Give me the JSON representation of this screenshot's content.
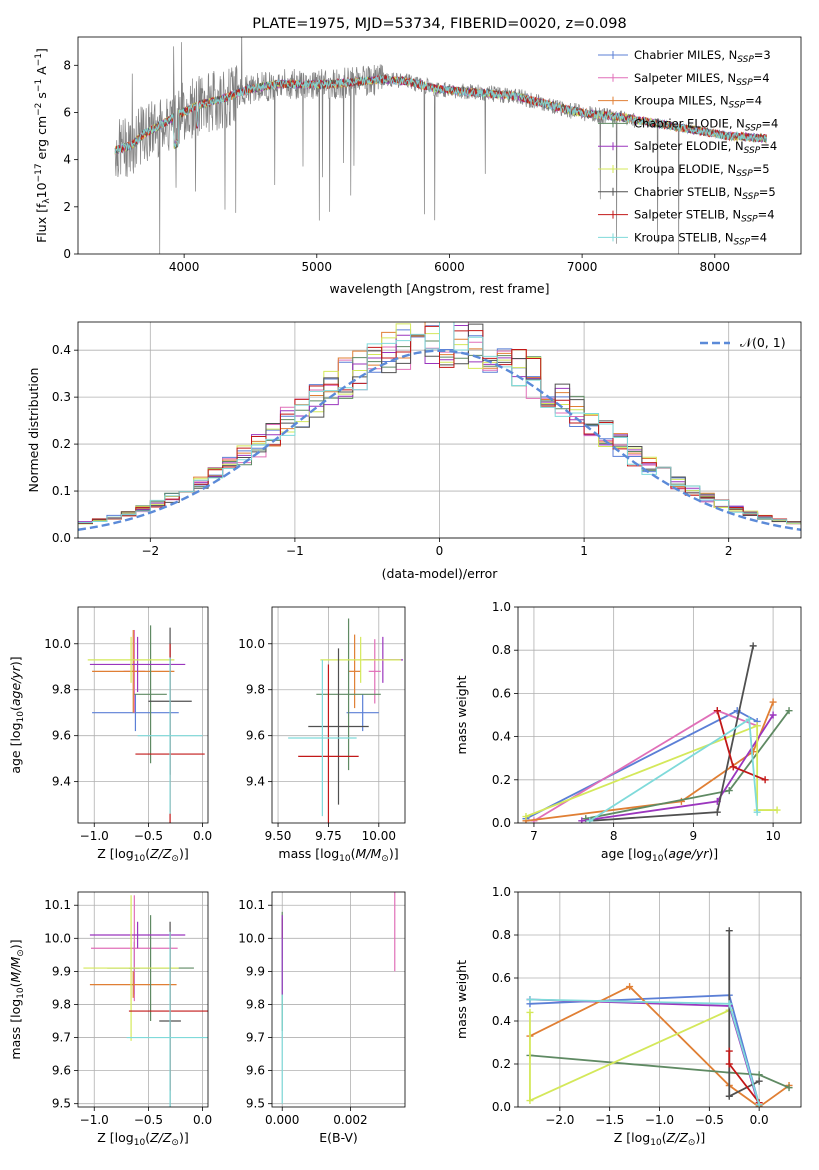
{
  "chart_data": [
    {
      "id": "spectrum",
      "type": "line",
      "title": "PLATE=1975, MJD=53734, FIBERID=0020, z=0.098",
      "xlabel": "wavelength [Angstrom, rest frame]",
      "ylabel": "Flux [f_λ 10^-17 erg cm^-2 s^-1 A^-1]",
      "xlim": [
        3200,
        8650
      ],
      "ylim": [
        0,
        9.2
      ],
      "xticks": [
        4000,
        5000,
        6000,
        7000,
        8000
      ],
      "yticks": [
        0,
        2,
        4,
        6,
        8
      ],
      "grid": false,
      "legend_position": "top-right",
      "data_color": "#808080",
      "data_x_range": [
        3480,
        8390
      ],
      "continuum_points": [
        [
          3480,
          4.4
        ],
        [
          3600,
          4.6
        ],
        [
          3700,
          5.1
        ],
        [
          3800,
          5.4
        ],
        [
          3950,
          5.9
        ],
        [
          4100,
          6.3
        ],
        [
          4300,
          6.6
        ],
        [
          4500,
          7.0
        ],
        [
          4700,
          7.2
        ],
        [
          4900,
          7.2
        ],
        [
          5100,
          7.2
        ],
        [
          5300,
          7.3
        ],
        [
          5500,
          7.4
        ],
        [
          5700,
          7.3
        ],
        [
          5900,
          7.0
        ],
        [
          6100,
          6.9
        ],
        [
          6300,
          6.8
        ],
        [
          6500,
          6.7
        ],
        [
          6700,
          6.4
        ],
        [
          6900,
          6.1
        ],
        [
          7100,
          5.9
        ],
        [
          7300,
          5.8
        ],
        [
          7500,
          5.6
        ],
        [
          7700,
          5.4
        ],
        [
          7900,
          5.2
        ],
        [
          8100,
          5.0
        ],
        [
          8390,
          4.9
        ]
      ],
      "series": [
        {
          "label_main": "Chabrier MILES, N",
          "label_sub": "SSP",
          "label_tail": "=3",
          "color": "#5b7fd6"
        },
        {
          "label_main": "Salpeter MILES, N",
          "label_sub": "SSP",
          "label_tail": "=4",
          "color": "#e06fb8"
        },
        {
          "label_main": "Kroupa MILES, N",
          "label_sub": "SSP",
          "label_tail": "=4",
          "color": "#e07f34"
        },
        {
          "label_main": "Chabrier ELODIE, N",
          "label_sub": "SSP",
          "label_tail": "=4",
          "color": "#5f8a63"
        },
        {
          "label_main": "Salpeter ELODIE, N",
          "label_sub": "SSP",
          "label_tail": "=4",
          "color": "#9b36be"
        },
        {
          "label_main": "Kroupa ELODIE, N",
          "label_sub": "SSP",
          "label_tail": "=5",
          "color": "#d4e85a"
        },
        {
          "label_main": "Chabrier STELIB, N",
          "label_sub": "SSP",
          "label_tail": "=5",
          "color": "#505050"
        },
        {
          "label_main": "Salpeter STELIB, N",
          "label_sub": "SSP",
          "label_tail": "=4",
          "color": "#c21818"
        },
        {
          "label_main": "Kroupa STELIB, N",
          "label_sub": "SSP",
          "label_tail": "=4",
          "color": "#7fdada"
        }
      ]
    },
    {
      "id": "residuals",
      "type": "line",
      "xlabel": "(data-model)/error",
      "ylabel": "Normed distribution",
      "xlim": [
        -2.5,
        2.5
      ],
      "ylim": [
        0,
        0.46
      ],
      "xticks": [
        -2,
        -1,
        0,
        1,
        2
      ],
      "yticks": [
        0.0,
        0.1,
        0.2,
        0.3,
        0.4
      ],
      "grid": true,
      "legend_position": "top-right",
      "gaussian": {
        "label": "𝒩(0, 1)",
        "mean": 0,
        "sigma": 1,
        "color": "#5b8ad8"
      },
      "bin_width": 0.1,
      "bin_start": -2.5,
      "base_hist": [
        0.022,
        0.028,
        0.035,
        0.045,
        0.055,
        0.068,
        0.08,
        0.09,
        0.1,
        0.115,
        0.13,
        0.15,
        0.17,
        0.19,
        0.21,
        0.23,
        0.25,
        0.27,
        0.31,
        0.3,
        0.3,
        0.28,
        0.29,
        0.3,
        0.32,
        0.33,
        0.34,
        0.35,
        0.36,
        0.37,
        0.38,
        0.38,
        0.385,
        0.37,
        0.36,
        0.375,
        0.37,
        0.38,
        0.35,
        0.34,
        0.33,
        0.31,
        0.28,
        0.26,
        0.25,
        0.24,
        0.22,
        0.21,
        0.19,
        0.17,
        0.16,
        0.15,
        0.14,
        0.12,
        0.11,
        0.09,
        0.08,
        0.075,
        0.07,
        0.065,
        0.06,
        0.055,
        0.05,
        0.048,
        0.045,
        0.04,
        0.035,
        0.032,
        0.03,
        0.028,
        0.026,
        0.025,
        0.024,
        0.023,
        0.022,
        0.021,
        0.02,
        0.02,
        0.019,
        0.018,
        0.018,
        0.017,
        0.016,
        0.016,
        0.015,
        0.015,
        0.014,
        0.014,
        0.013,
        0.013,
        0.012,
        0.012,
        0.012,
        0.011,
        0.011,
        0.011,
        0.01,
        0.01,
        0.01,
        0.01
      ],
      "hist_colors": [
        "#5b7fd6",
        "#e06fb8",
        "#e07f34",
        "#5f8a63",
        "#9b36be",
        "#d4e85a",
        "#505050",
        "#c21818",
        "#7fdada"
      ]
    },
    {
      "id": "z-age",
      "type": "scatter",
      "xlabel": "Z [log10(Z/Z⊙)]",
      "ylabel": "age [log10(age/yr)]",
      "xlim": [
        -1.15,
        0.05
      ],
      "ylim": [
        9.22,
        10.16
      ],
      "xticks": [
        -1.0,
        -0.5,
        0.0
      ],
      "yticks": [
        9.4,
        9.6,
        9.8,
        10.0
      ],
      "grid": true,
      "points": [
        {
          "x": -0.62,
          "y": 9.7,
          "xerr": 0.4,
          "yerr": 0.08,
          "color": "#5b7fd6"
        },
        {
          "x": -0.63,
          "y": 9.88,
          "xerr": 0.1,
          "yerr": 0.18,
          "color": "#e06fb8"
        },
        {
          "x": -0.64,
          "y": 9.88,
          "xerr": 0.38,
          "yerr": 0.18,
          "color": "#e07f34"
        },
        {
          "x": -0.48,
          "y": 9.78,
          "xerr": 0.15,
          "yerr": 0.3,
          "color": "#5f8a63"
        },
        {
          "x": -0.6,
          "y": 9.91,
          "xerr": 0.44,
          "yerr": 0.12,
          "color": "#9b36be"
        },
        {
          "x": -0.66,
          "y": 9.93,
          "xerr": 0.4,
          "yerr": 0.1,
          "color": "#d4e85a"
        },
        {
          "x": -0.3,
          "y": 9.75,
          "xerr": 0.2,
          "yerr": 0.32,
          "color": "#505050"
        },
        {
          "x": -0.3,
          "y": 9.52,
          "xerr": 0.32,
          "yerr": 0.48,
          "color": "#c21818"
        },
        {
          "x": -0.3,
          "y": 9.6,
          "xerr": 0.3,
          "yerr": 0.34,
          "color": "#7fdada"
        }
      ]
    },
    {
      "id": "mass-age",
      "type": "scatter",
      "xlabel": "mass [log10(M/M⊙)]",
      "xlim": [
        9.47,
        10.13
      ],
      "ylim": [
        9.22,
        10.16
      ],
      "xticks": [
        9.5,
        9.75,
        10.0
      ],
      "yticks": [
        9.4,
        9.6,
        9.8,
        10.0
      ],
      "grid": true,
      "points": [
        {
          "x": 9.92,
          "y": 9.7,
          "xerr": 0.08,
          "yerr": 0.08,
          "color": "#5b7fd6"
        },
        {
          "x": 9.98,
          "y": 9.88,
          "xerr": 0.03,
          "yerr": 0.14,
          "color": "#e06fb8"
        },
        {
          "x": 9.88,
          "y": 9.88,
          "xerr": 0.03,
          "yerr": 0.16,
          "color": "#e07f34"
        },
        {
          "x": 9.85,
          "y": 9.78,
          "xerr": 0.16,
          "yerr": 0.33,
          "color": "#5f8a63"
        },
        {
          "x": 10.02,
          "y": 9.93,
          "xerr": 0.1,
          "yerr": 0.1,
          "color": "#9b36be"
        },
        {
          "x": 9.91,
          "y": 9.93,
          "xerr": 0.2,
          "yerr": 0.1,
          "color": "#d4e85a"
        },
        {
          "x": 9.8,
          "y": 9.64,
          "xerr": 0.15,
          "yerr": 0.34,
          "color": "#505050"
        },
        {
          "x": 9.75,
          "y": 9.51,
          "xerr": 0.15,
          "yerr": 0.4,
          "color": "#c21818"
        },
        {
          "x": 9.72,
          "y": 9.59,
          "xerr": 0.17,
          "yerr": 0.34,
          "color": "#7fdada"
        }
      ]
    },
    {
      "id": "age-weight",
      "type": "line",
      "xlabel": "age [log10(age/yr)]",
      "ylabel": "mass weight",
      "xlim": [
        6.8,
        10.35
      ],
      "ylim": [
        0,
        1.0
      ],
      "xticks": [
        7,
        8,
        9,
        10
      ],
      "yticks": [
        0.0,
        0.2,
        0.4,
        0.6,
        0.8,
        1.0
      ],
      "grid": true,
      "series": [
        {
          "color": "#5b7fd6",
          "x": [
            6.9,
            9.55,
            9.8
          ],
          "y": [
            0.02,
            0.52,
            0.47
          ]
        },
        {
          "color": "#e06fb8",
          "x": [
            7.0,
            9.3,
            9.8
          ],
          "y": [
            0.01,
            0.52,
            0.45
          ]
        },
        {
          "color": "#e07f34",
          "x": [
            6.9,
            8.85,
            9.75,
            10.0
          ],
          "y": [
            0.01,
            0.1,
            0.33,
            0.56
          ]
        },
        {
          "color": "#5f8a63",
          "x": [
            7.65,
            9.45,
            10.2
          ],
          "y": [
            0.02,
            0.15,
            0.52
          ]
        },
        {
          "color": "#9b36be",
          "x": [
            7.6,
            9.3,
            10.0
          ],
          "y": [
            0.01,
            0.1,
            0.5
          ]
        },
        {
          "color": "#d4e85a",
          "x": [
            6.9,
            9.8,
            9.8,
            10.05
          ],
          "y": [
            0.03,
            0.45,
            0.06,
            0.06
          ]
        },
        {
          "color": "#505050",
          "x": [
            7.7,
            9.3,
            9.75
          ],
          "y": [
            0.01,
            0.05,
            0.82
          ]
        },
        {
          "color": "#c21818",
          "x": [
            9.3,
            9.5,
            9.9
          ],
          "y": [
            0.52,
            0.26,
            0.2
          ]
        },
        {
          "color": "#7fdada",
          "x": [
            7.7,
            9.7,
            9.8
          ],
          "y": [
            0.01,
            0.48,
            0.05
          ]
        }
      ]
    },
    {
      "id": "z-mass",
      "type": "scatter",
      "xlabel": "Z [log10(Z/Z⊙)]",
      "ylabel": "mass [log10(M/M⊙)]",
      "xlim": [
        -1.15,
        0.05
      ],
      "ylim": [
        9.49,
        10.14
      ],
      "xticks": [
        -1.0,
        -0.5,
        0.0
      ],
      "yticks": [
        9.5,
        9.6,
        9.7,
        9.8,
        9.9,
        10.0,
        10.1
      ],
      "grid": true,
      "points": [
        {
          "x": -0.63,
          "y": 9.91,
          "xerr": 0.05,
          "yerr": 0.08,
          "color": "#5b7fd6"
        },
        {
          "x": -0.63,
          "y": 9.97,
          "xerr": 0.4,
          "yerr": 0.16,
          "color": "#e06fb8"
        },
        {
          "x": -0.64,
          "y": 9.86,
          "xerr": 0.4,
          "yerr": 0.04,
          "color": "#e07f34"
        },
        {
          "x": -0.48,
          "y": 9.91,
          "xerr": 0.4,
          "yerr": 0.16,
          "color": "#5f8a63"
        },
        {
          "x": -0.6,
          "y": 10.01,
          "xerr": 0.44,
          "yerr": 0.04,
          "color": "#9b36be"
        },
        {
          "x": -0.66,
          "y": 9.91,
          "xerr": 0.44,
          "yerr": 0.22,
          "color": "#d4e85a"
        },
        {
          "x": -0.3,
          "y": 9.75,
          "xerr": 0.1,
          "yerr": 0.3,
          "color": "#505050"
        },
        {
          "x": -0.3,
          "y": 9.78,
          "xerr": 0.38,
          "yerr": 0.24,
          "color": "#c21818"
        },
        {
          "x": -0.3,
          "y": 9.7,
          "xerr": 0.4,
          "yerr": 0.32,
          "color": "#7fdada"
        }
      ]
    },
    {
      "id": "ebv-mass",
      "type": "scatter",
      "xlabel": "E(B-V)",
      "xlim": [
        -0.0003,
        0.0036
      ],
      "ylim": [
        9.49,
        10.14
      ],
      "xticks": [
        0.0,
        0.002
      ],
      "yticks": [
        9.5,
        9.6,
        9.7,
        9.8,
        9.9,
        10.0,
        10.1
      ],
      "grid": true,
      "points": [
        {
          "x": 0.0,
          "y": 10.0,
          "yerr": 0.06,
          "color": "#c21818"
        },
        {
          "x": 0.0,
          "y": 9.9,
          "yerr": 0.18,
          "color": "#5f8a63"
        },
        {
          "x": 0.0,
          "y": 9.75,
          "yerr": 0.25,
          "color": "#7fdada"
        },
        {
          "x": 0.0,
          "y": 9.95,
          "yerr": 0.12,
          "color": "#9b36be"
        },
        {
          "x": 0.0033,
          "y": 10.02,
          "yerr": 0.12,
          "color": "#e06fb8"
        }
      ]
    },
    {
      "id": "z-weight",
      "type": "line",
      "xlabel": "Z [log10(Z/Z⊙)]",
      "ylabel": "mass weight",
      "xlim": [
        -2.42,
        0.42
      ],
      "ylim": [
        0,
        1.0
      ],
      "xticks": [
        -2.0,
        -1.5,
        -1.0,
        -0.5,
        0.0
      ],
      "yticks": [
        0.0,
        0.2,
        0.4,
        0.6,
        0.8,
        1.0
      ],
      "grid": true,
      "series": [
        {
          "color": "#5b7fd6",
          "x": [
            -2.3,
            -0.3,
            0.0
          ],
          "y": [
            0.48,
            0.52,
            0.01
          ]
        },
        {
          "color": "#9b36be",
          "x": [
            -2.3,
            -0.3,
            0.0
          ],
          "y": [
            0.5,
            0.47,
            0.0
          ]
        },
        {
          "color": "#e07f34",
          "x": [
            -2.3,
            -1.3,
            -0.3,
            0.0,
            0.3
          ],
          "y": [
            0.33,
            0.56,
            0.1,
            0.0,
            0.1
          ]
        },
        {
          "color": "#5f8a63",
          "x": [
            -2.3,
            -0.3,
            0.0,
            0.3
          ],
          "y": [
            0.24,
            0.16,
            0.15,
            0.09
          ]
        },
        {
          "color": "#d4e85a",
          "x": [
            -2.3,
            -2.3,
            -0.3,
            -0.3
          ],
          "y": [
            0.44,
            0.03,
            0.45,
            0.45
          ]
        },
        {
          "color": "#505050",
          "x": [
            -0.3,
            -0.3,
            0.0
          ],
          "y": [
            0.82,
            0.05,
            0.12
          ]
        },
        {
          "color": "#c21818",
          "x": [
            -0.3,
            -0.3,
            0.0
          ],
          "y": [
            0.26,
            0.2,
            0.02
          ]
        },
        {
          "color": "#7fdada",
          "x": [
            -2.3,
            -0.3,
            0.0
          ],
          "y": [
            0.5,
            0.48,
            0.01
          ]
        }
      ]
    }
  ]
}
